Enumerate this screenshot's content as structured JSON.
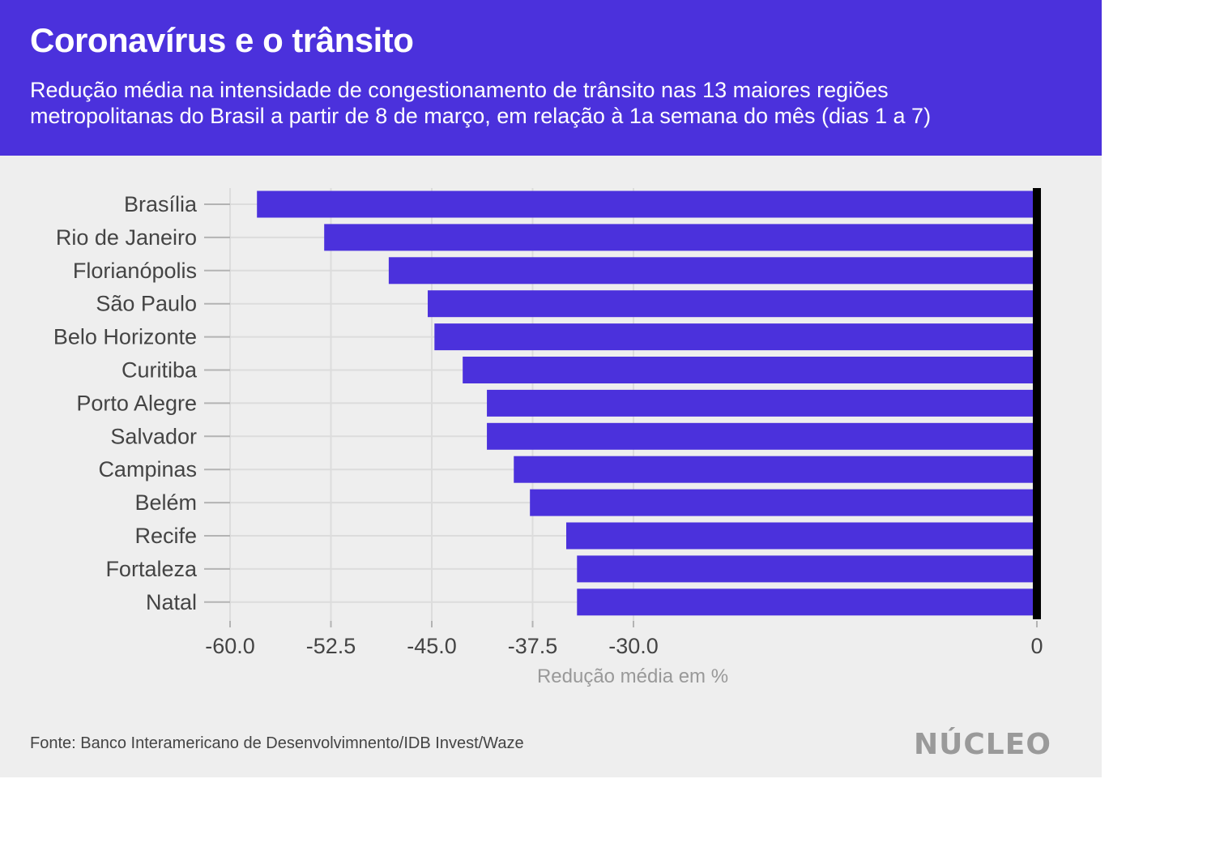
{
  "header": {
    "title": "Coronavírus e o trânsito",
    "subtitle_lines": [
      "Redução média na intensidade de congestionamento de trânsito nas 13 maiores regiões",
      "metropolitanas do Brasil a partir de 8 de março, em relação à 1a semana do mês (dias 1 a 7)"
    ]
  },
  "footer": {
    "source": "Fonte: Banco Interamericano de Desenvolvimnento/IDB Invest/Waze",
    "logo": "NÚCLEO"
  },
  "colors": {
    "header_bg": "#4b31dc",
    "bar": "#4b31dc",
    "card_bg": "#eeeeee",
    "grid": "#dcdcdc",
    "zero_line": "#000000",
    "text": "#444444",
    "axis_title": "#999999",
    "logo": "#9a9a9a"
  },
  "chart_data": {
    "type": "bar",
    "orientation": "horizontal",
    "title": "Coronavírus e o trânsito",
    "xlabel": "Redução média em %",
    "ylabel": "",
    "categories": [
      "Brasília",
      "Rio de Janeiro",
      "Florianópolis",
      "São Paulo",
      "Belo Horizonte",
      "Curitiba",
      "Porto Alegre",
      "Salvador",
      "Campinas",
      "Belém",
      "Recife",
      "Fortaleza",
      "Natal"
    ],
    "values": [
      -58,
      -53,
      -48.2,
      -45.3,
      -44.8,
      -42.7,
      -40.9,
      -40.9,
      -38.9,
      -37.7,
      -35,
      -34.2,
      -34.2
    ],
    "xlim": [
      -60,
      0
    ],
    "x_ticks": [
      -60,
      -52.5,
      -45,
      -37.5,
      -30,
      0
    ],
    "x_tick_labels": [
      "-60.0",
      "-52.5",
      "-45.0",
      "-37.5",
      "-30.0",
      "0"
    ],
    "grid": true,
    "legend": "none"
  }
}
